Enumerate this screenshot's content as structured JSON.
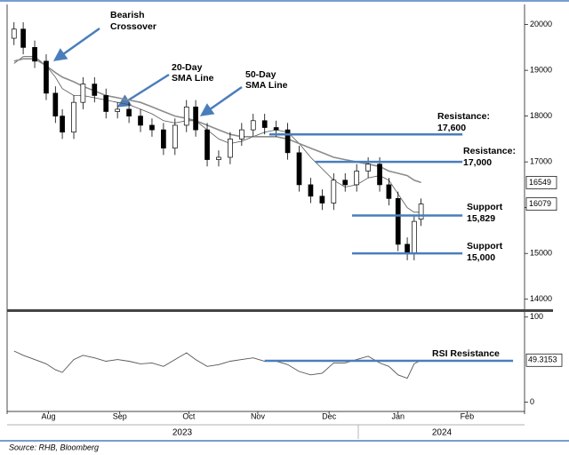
{
  "chart_data": [
    {
      "type": "candlestick",
      "x": [
        1,
        5,
        10,
        15,
        19,
        22,
        27,
        31,
        36,
        41,
        46,
        51,
        56,
        61,
        66,
        71,
        76,
        80,
        85,
        90,
        95,
        100,
        105,
        110,
        115,
        120,
        125,
        130,
        135,
        140,
        145,
        150,
        155,
        160,
        164,
        168,
        172,
        175,
        178
      ],
      "open": [
        19700,
        19900,
        19500,
        19200,
        18500,
        18000,
        17650,
        18300,
        18700,
        18450,
        18100,
        18150,
        18000,
        17800,
        17700,
        17300,
        17800,
        18200,
        17700,
        17050,
        17100,
        17500,
        17700,
        17900,
        17750,
        17700,
        17200,
        16500,
        16250,
        16100,
        16600,
        16500,
        16800,
        16950,
        16500,
        16200,
        15200,
        15000,
        15750
      ],
      "high": [
        20050,
        20050,
        19650,
        19350,
        18650,
        18150,
        18450,
        18850,
        18850,
        18600,
        18300,
        18300,
        18150,
        17950,
        17850,
        17950,
        18350,
        18350,
        17850,
        17250,
        17650,
        17850,
        18050,
        18050,
        17900,
        17850,
        17350,
        16650,
        16400,
        16750,
        16750,
        16950,
        17100,
        17100,
        16650,
        16350,
        15350,
        15850,
        16200
      ],
      "low": [
        19550,
        19350,
        19050,
        18350,
        17850,
        17500,
        17500,
        18150,
        18300,
        17950,
        17950,
        17850,
        17650,
        17550,
        17150,
        17150,
        17650,
        17550,
        16900,
        16900,
        16950,
        17350,
        17550,
        17600,
        17550,
        17050,
        16350,
        16100,
        15950,
        15950,
        16350,
        16350,
        16650,
        16350,
        16050,
        15050,
        14850,
        14850,
        15600
      ],
      "close": [
        19900,
        19500,
        19200,
        18500,
        18000,
        17650,
        18300,
        18700,
        18450,
        18100,
        18150,
        18000,
        17800,
        17700,
        17300,
        17800,
        18200,
        17700,
        17050,
        17100,
        17500,
        17700,
        17900,
        17750,
        17700,
        17200,
        16500,
        16250,
        16100,
        16600,
        16500,
        16800,
        16950,
        16500,
        16200,
        15200,
        15000,
        15700,
        16079
      ],
      "series": [
        {
          "color": "#555555",
          "values": [
            19150,
            19300,
            19300,
            19100,
            18850,
            18600,
            18450,
            18450,
            18400,
            18350,
            18300,
            18250,
            18150,
            18050,
            17900,
            17850,
            17900,
            17900,
            17700,
            17500,
            17400,
            17450,
            17550,
            17650,
            17700,
            17650,
            17400,
            17100,
            16850,
            16600,
            16450,
            16500,
            16650,
            16700,
            16600,
            16300,
            16000,
            15900,
            15900
          ]
        },
        {
          "color": "#8c8c8c",
          "values": [
            19200,
            19250,
            19250,
            19100,
            18950,
            18850,
            18750,
            18650,
            18550,
            18450,
            18400,
            18350,
            18300,
            18200,
            18100,
            18000,
            17950,
            17900,
            17800,
            17700,
            17600,
            17550,
            17550,
            17550,
            17550,
            17500,
            17400,
            17300,
            17200,
            17100,
            17050,
            17000,
            16950,
            16900,
            16800,
            16750,
            16700,
            16600,
            16549
          ]
        }
      ],
      "ylim": [
        13800,
        20400
      ],
      "yticks": [
        14000,
        15000,
        16000,
        17000,
        18000,
        19000,
        20000
      ],
      "xlim": [
        -2,
        223
      ],
      "levels": [
        {
          "value": 17600,
          "x": [
            112,
            196
          ],
          "label": [
            "Resistance:",
            "17,600"
          ]
        },
        {
          "value": 17000,
          "x": [
            132,
            196
          ],
          "label": [
            "Resistance:",
            "17,000"
          ]
        },
        {
          "value": 15829,
          "x": [
            148,
            196
          ],
          "label": [
            "Support",
            "15,829"
          ]
        },
        {
          "value": 15000,
          "x": [
            148,
            196
          ],
          "label": [
            "Support",
            "15,000"
          ]
        }
      ],
      "level_color": "#4a7ebb",
      "annotations": [
        [
          "Bearish",
          "Crossover"
        ],
        [
          "20-Day",
          "SMA Line"
        ],
        [
          "50-Day",
          "SMA Line"
        ]
      ]
    },
    {
      "type": "line",
      "x": [
        1,
        5,
        10,
        15,
        19,
        22,
        27,
        31,
        36,
        41,
        46,
        51,
        56,
        61,
        66,
        71,
        76,
        80,
        85,
        90,
        95,
        100,
        105,
        110,
        115,
        120,
        125,
        130,
        135,
        140,
        145,
        150,
        155,
        160,
        164,
        168,
        172,
        175,
        178
      ],
      "values": [
        60,
        55,
        50,
        45,
        38,
        35,
        50,
        55,
        52,
        48,
        50,
        48,
        45,
        46,
        42,
        50,
        58,
        50,
        42,
        44,
        48,
        50,
        52,
        48,
        48,
        44,
        36,
        32,
        34,
        46,
        46,
        50,
        54,
        46,
        42,
        32,
        28,
        45,
        49.3153
      ],
      "color": "#555555",
      "ylim": [
        -10,
        105
      ],
      "yticks": [
        0,
        100
      ],
      "xlim": [
        -2,
        223
      ],
      "xticks": [
        {
          "value": 16,
          "label": "Aug"
        },
        {
          "value": 47,
          "label": "Sep"
        },
        {
          "value": 77,
          "label": "Oct"
        },
        {
          "value": 107,
          "label": "Nov"
        },
        {
          "value": 138,
          "label": "Dec"
        },
        {
          "value": 168,
          "label": "Jan"
        },
        {
          "value": 198,
          "label": "Feb"
        }
      ],
      "years": [
        "2023",
        "2024"
      ],
      "levels": [
        {
          "value": 48.5,
          "x": [
            110,
            218
          ],
          "label": "RSI Resistance"
        }
      ],
      "level_color": "#4a7ebb"
    }
  ],
  "source": "Source: RHB, Bloomberg"
}
